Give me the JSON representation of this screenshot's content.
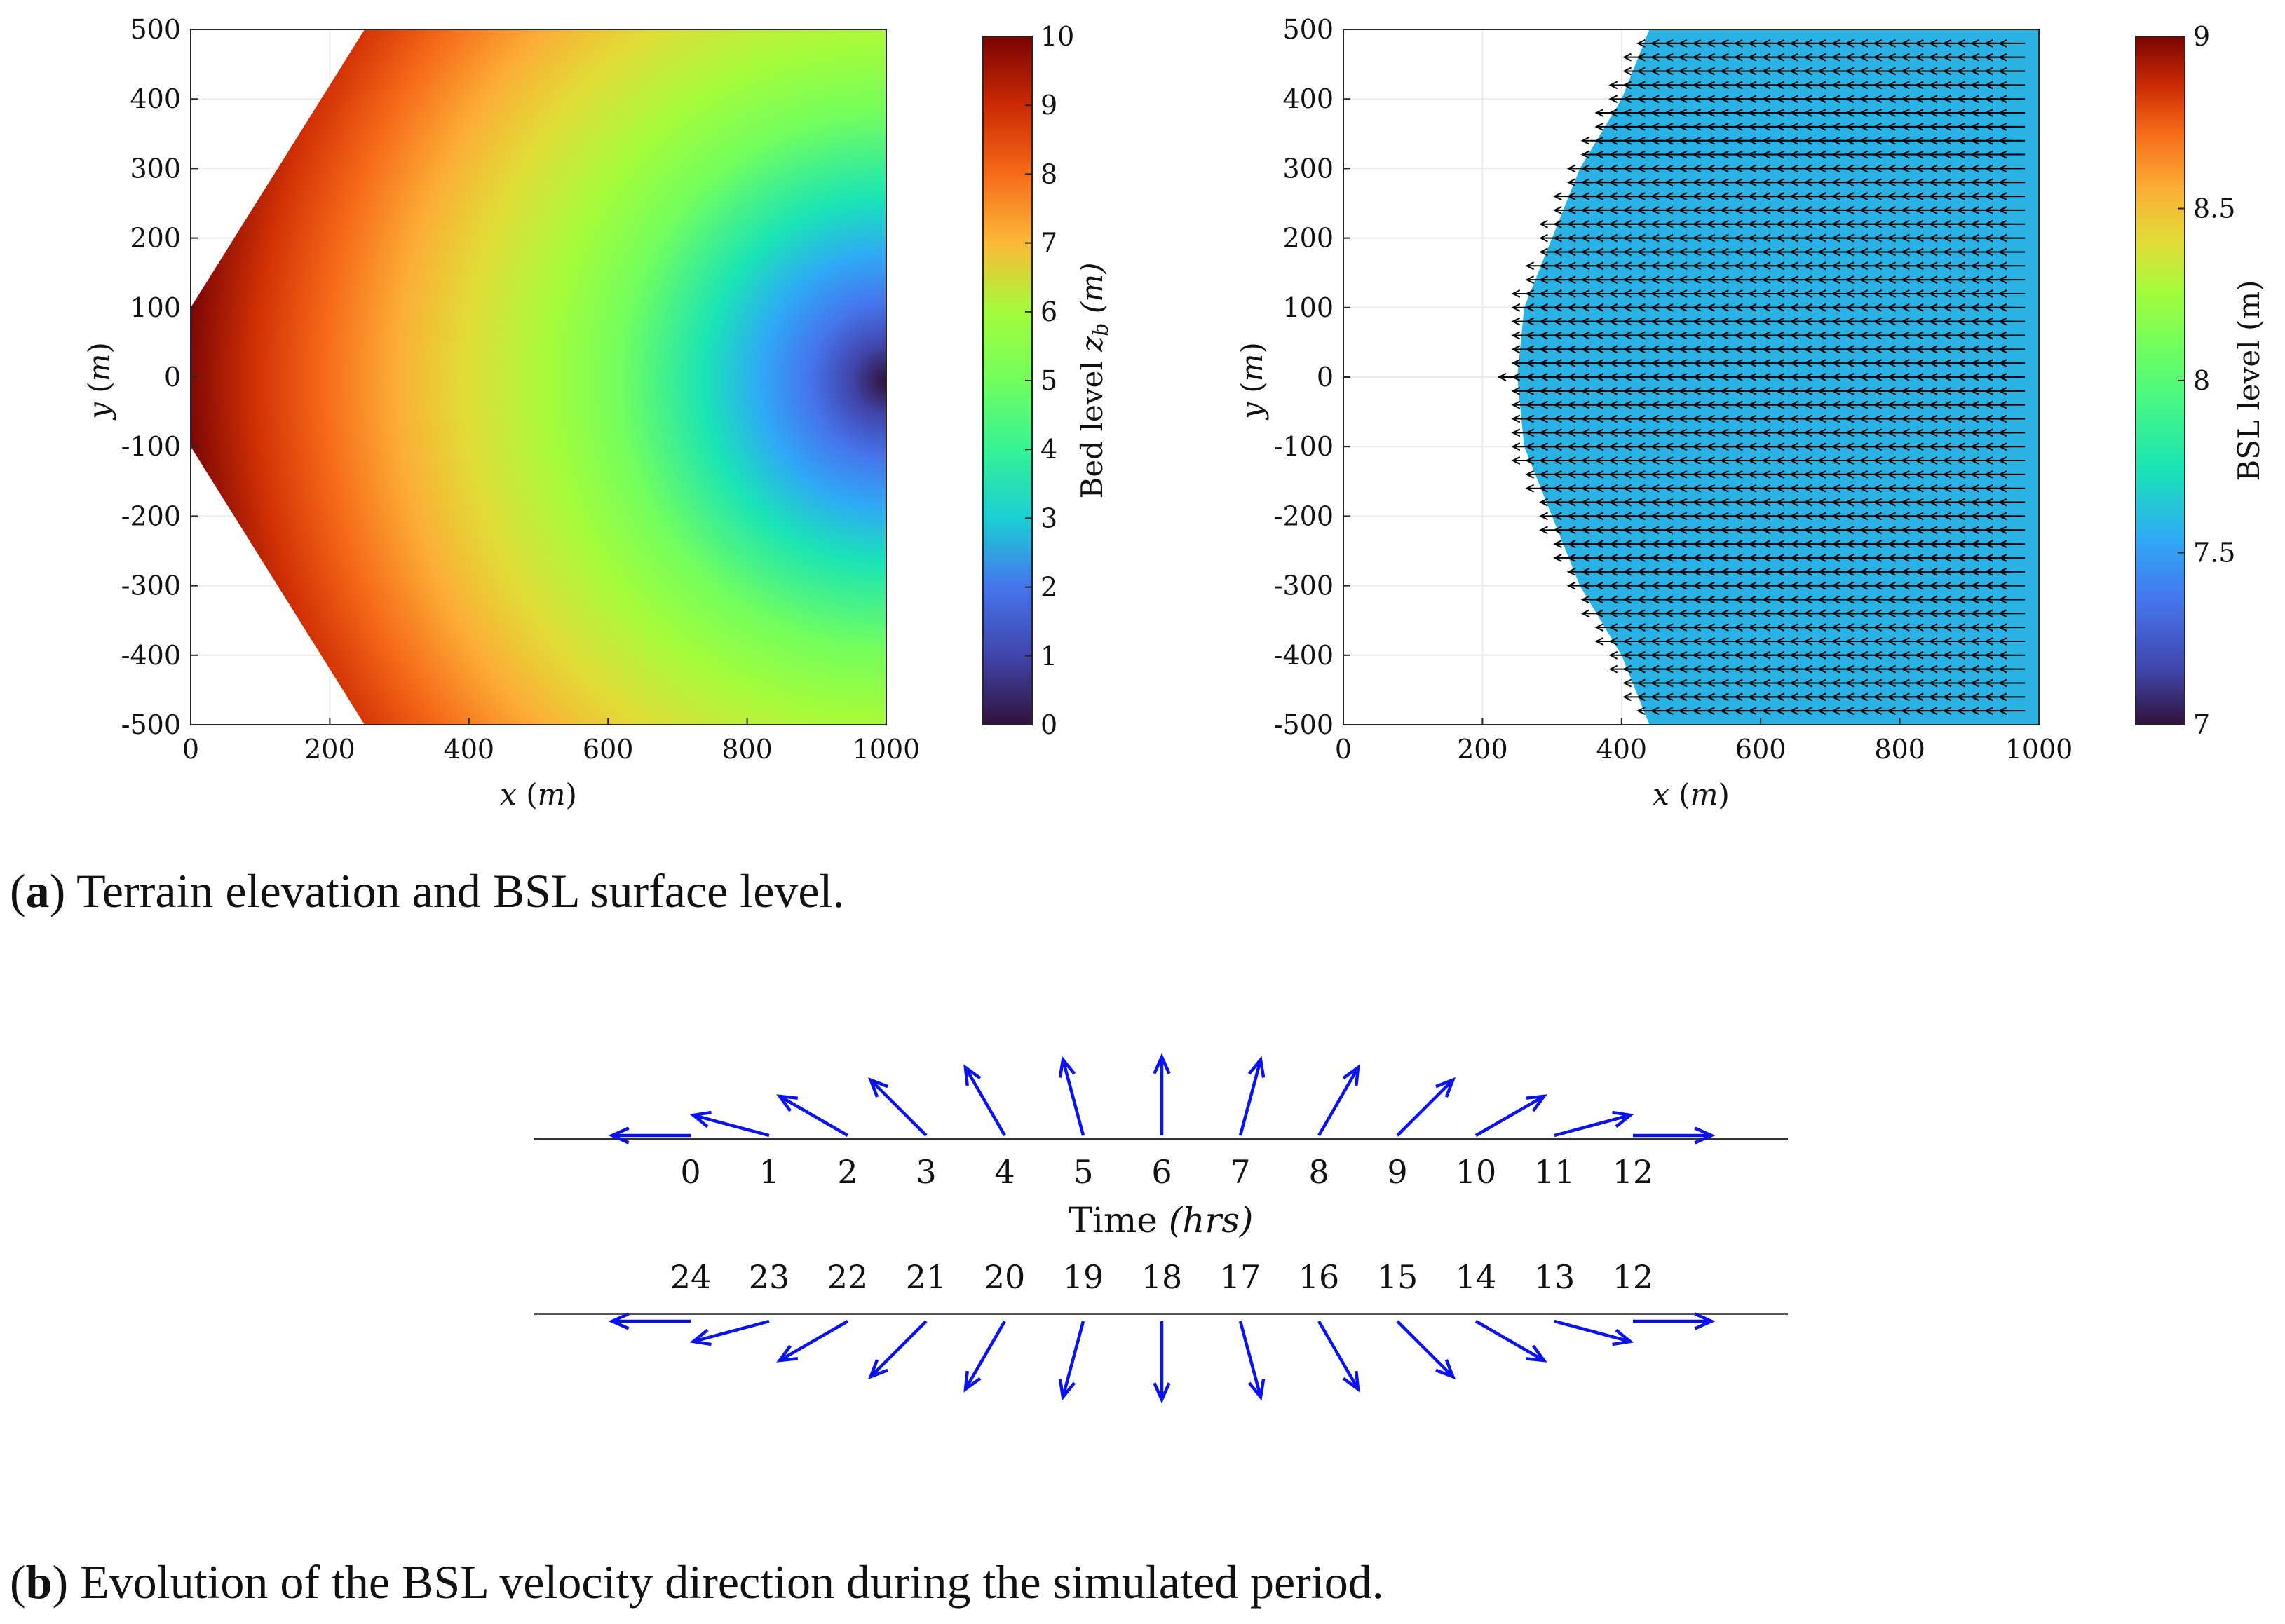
{
  "figure_a": {
    "caption_label": "a",
    "caption_text": "Terrain elevation and BSL surface level."
  },
  "figure_b": {
    "caption_label": "b",
    "caption_text": "Evolution of the BSL velocity direction during the simulated period."
  },
  "chart_data": [
    {
      "type": "heatmap",
      "name": "terrain-elevation",
      "title": "",
      "xlabel": "x (m)",
      "ylabel": "y (m)",
      "xlim": [
        0,
        1000
      ],
      "ylim": [
        -500,
        500
      ],
      "xticks": [
        "0",
        "200",
        "400",
        "600",
        "800",
        "1000"
      ],
      "yticks": [
        "500",
        "400",
        "300",
        "200",
        "100",
        "0",
        "-100",
        "-200",
        "-300",
        "-400",
        "-500"
      ],
      "colorbar": {
        "label_prefix": "Bed level ",
        "label_var": "z",
        "label_sub": "b",
        "label_unit": " (m)",
        "range": [
          0,
          10
        ],
        "ticks": [
          "0",
          "1",
          "2",
          "3",
          "4",
          "5",
          "6",
          "7",
          "8",
          "9",
          "10"
        ]
      },
      "domain_polygon": [
        [
          0,
          -100
        ],
        [
          250,
          -500
        ],
        [
          1000,
          -500
        ],
        [
          1000,
          500
        ],
        [
          250,
          500
        ],
        [
          0,
          100
        ]
      ],
      "bed_level_range": [
        0,
        10
      ],
      "bed_level_low_point": [
        1000,
        0
      ],
      "colormap": "turbo"
    },
    {
      "type": "heatmap",
      "name": "bsl-surface-level",
      "title": "",
      "xlabel": "x (m)",
      "ylabel": "y (m)",
      "xlim": [
        0,
        1000
      ],
      "ylim": [
        -500,
        500
      ],
      "xticks": [
        "0",
        "200",
        "400",
        "600",
        "800",
        "1000"
      ],
      "yticks": [
        "500",
        "400",
        "300",
        "200",
        "100",
        "0",
        "-100",
        "-200",
        "-300",
        "-400",
        "-500"
      ],
      "colorbar": {
        "label": "BSL level (m)",
        "range": [
          7,
          9
        ],
        "ticks": [
          "7",
          "7.5",
          "8",
          "8.5",
          "9"
        ]
      },
      "bsl_level": 7.5,
      "wet_area_left_edge": [
        [
          440,
          500
        ],
        [
          400,
          400
        ],
        [
          340,
          300
        ],
        [
          300,
          200
        ],
        [
          260,
          100
        ],
        [
          250,
          0
        ],
        [
          260,
          -100
        ],
        [
          300,
          -200
        ],
        [
          340,
          -300
        ],
        [
          400,
          -400
        ],
        [
          440,
          -500
        ]
      ],
      "velocity_direction": "-x",
      "velocity_rows_y": [
        480,
        460,
        440,
        420,
        400,
        380,
        360,
        340,
        320,
        300,
        280,
        260,
        240,
        220,
        200,
        180,
        160,
        140,
        120,
        100,
        80,
        60,
        40,
        20,
        0,
        -20,
        -40,
        -60,
        -80,
        -100,
        -120,
        -140,
        -160,
        -180,
        -200,
        -220,
        -240,
        -260,
        -280,
        -300,
        -320,
        -340,
        -360,
        -380,
        -400,
        -420,
        -440,
        -460,
        -480
      ]
    },
    {
      "type": "vector-timeline",
      "name": "bsl-velocity-direction",
      "xlabel_prefix": "Time ",
      "xlabel_unit": "(hrs)",
      "top_hours": [
        "0",
        "1",
        "2",
        "3",
        "4",
        "5",
        "6",
        "7",
        "8",
        "9",
        "10",
        "11",
        "12"
      ],
      "top_angles_deg": [
        180,
        165,
        150,
        135,
        120,
        105,
        90,
        75,
        60,
        45,
        30,
        15,
        0
      ],
      "bottom_hours": [
        "24",
        "23",
        "22",
        "21",
        "20",
        "19",
        "18",
        "17",
        "16",
        "15",
        "14",
        "13",
        "12"
      ],
      "bottom_angles_deg": [
        180,
        195,
        210,
        225,
        240,
        255,
        270,
        285,
        300,
        315,
        330,
        345,
        0
      ],
      "arrow_color": "#0a12ee"
    }
  ]
}
